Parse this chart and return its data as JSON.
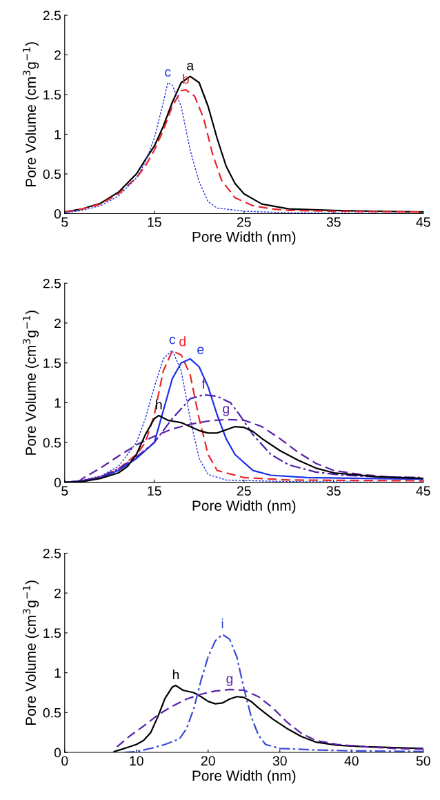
{
  "chart_data": [
    {
      "type": "line",
      "xlabel": "Pore Width (nm)",
      "ylabel": "Pore Volume (cm$^{3}$g$^{−1}$)",
      "xlim": [
        5,
        45
      ],
      "xticks": [
        5,
        15,
        25,
        35,
        45
      ],
      "ylim": [
        0,
        2.5
      ],
      "yticks": [
        0,
        0.5,
        1,
        1.5,
        2,
        2.5
      ],
      "grid": false,
      "legend": false,
      "series": [
        {
          "name": "a",
          "color": "#000000",
          "line_style": "solid",
          "x": [
            5,
            7,
            9,
            11,
            13,
            14,
            15,
            16,
            17,
            18,
            19,
            20,
            21,
            22,
            23,
            24,
            25,
            27,
            30,
            35,
            40,
            45
          ],
          "values": [
            0.02,
            0.06,
            0.13,
            0.27,
            0.5,
            0.68,
            0.85,
            1.1,
            1.4,
            1.65,
            1.73,
            1.65,
            1.35,
            0.95,
            0.6,
            0.38,
            0.25,
            0.12,
            0.06,
            0.04,
            0.03,
            0.02
          ]
        },
        {
          "name": "b",
          "color": "#e8262b",
          "line_style": "dashed",
          "x": [
            5,
            7,
            9,
            11,
            13,
            14,
            15,
            16,
            17,
            18,
            18.5,
            19.5,
            20.5,
            21.5,
            22.5,
            24,
            26,
            28,
            30,
            35,
            45
          ],
          "values": [
            0.02,
            0.06,
            0.12,
            0.25,
            0.45,
            0.6,
            0.8,
            1.05,
            1.35,
            1.55,
            1.56,
            1.48,
            1.2,
            0.75,
            0.42,
            0.2,
            0.1,
            0.06,
            0.04,
            0.03,
            0.02
          ]
        },
        {
          "name": "c",
          "color": "#2030e0",
          "line_style": "dotted",
          "x": [
            5,
            7,
            9,
            11,
            13,
            14,
            15,
            16,
            16.5,
            17,
            18,
            19,
            20,
            21,
            22,
            25,
            30,
            45
          ],
          "values": [
            0.01,
            0.04,
            0.1,
            0.22,
            0.45,
            0.65,
            0.95,
            1.4,
            1.65,
            1.62,
            1.35,
            0.8,
            0.4,
            0.15,
            0.07,
            0.03,
            0.01,
            0.0
          ]
        }
      ]
    },
    {
      "type": "line",
      "xlabel": "Pore Width (nm)",
      "ylabel": "Pore Volume (cm$^{3}$g$^{−1}$)",
      "xlim": [
        5,
        45
      ],
      "xticks": [
        5,
        15,
        25,
        35,
        45
      ],
      "ylim": [
        0,
        2.5
      ],
      "yticks": [
        0,
        0.5,
        1,
        1.5,
        2,
        2.5
      ],
      "grid": false,
      "legend": false,
      "series": [
        {
          "name": "c",
          "color": "#2030e0",
          "line_style": "dotted",
          "x": [
            5,
            7,
            9,
            11,
            13,
            14,
            15,
            16,
            17,
            18,
            19,
            20,
            21,
            23,
            30,
            45
          ],
          "values": [
            0.0,
            0.03,
            0.08,
            0.2,
            0.5,
            0.8,
            1.2,
            1.55,
            1.66,
            1.4,
            0.8,
            0.3,
            0.1,
            0.03,
            0.01,
            0.0
          ]
        },
        {
          "name": "d",
          "color": "#e8262b",
          "line_style": "dashed",
          "x": [
            5,
            7,
            9,
            11,
            13,
            14,
            15,
            16,
            17,
            18,
            19,
            20,
            21,
            22,
            25,
            30,
            45
          ],
          "values": [
            0.0,
            0.02,
            0.07,
            0.17,
            0.35,
            0.5,
            0.85,
            1.4,
            1.65,
            1.6,
            1.35,
            0.8,
            0.35,
            0.15,
            0.06,
            0.03,
            0.02
          ]
        },
        {
          "name": "e",
          "color": "#1a2fe8",
          "line_style": "solid",
          "x": [
            5,
            7,
            9,
            11,
            13,
            15,
            16,
            17,
            18,
            19,
            20,
            21,
            22,
            23,
            24,
            26,
            28,
            32,
            45
          ],
          "values": [
            0.0,
            0.02,
            0.06,
            0.15,
            0.3,
            0.5,
            0.9,
            1.3,
            1.5,
            1.55,
            1.45,
            1.2,
            0.85,
            0.55,
            0.35,
            0.15,
            0.09,
            0.06,
            0.04
          ]
        },
        {
          "name": "f",
          "color": "#4b1fb0",
          "line_style": "dashdot",
          "x": [
            5,
            7,
            9,
            11,
            13,
            15,
            17,
            19,
            20.5,
            22,
            23.5,
            24.5,
            26,
            28,
            30,
            33,
            36,
            40,
            45
          ],
          "values": [
            0.0,
            0.02,
            0.07,
            0.17,
            0.32,
            0.5,
            0.8,
            1.05,
            1.1,
            1.08,
            1.0,
            0.85,
            0.6,
            0.35,
            0.22,
            0.13,
            0.09,
            0.07,
            0.06
          ]
        },
        {
          "name": "g",
          "color": "#5a1fa8",
          "line_style": "dashed",
          "x": [
            6.5,
            7,
            9,
            11,
            13,
            15,
            17,
            19,
            21,
            23,
            25,
            27,
            29,
            31,
            33,
            35,
            38,
            41,
            45
          ],
          "values": [
            0.0,
            0.05,
            0.18,
            0.33,
            0.47,
            0.58,
            0.67,
            0.73,
            0.77,
            0.79,
            0.78,
            0.7,
            0.55,
            0.38,
            0.24,
            0.15,
            0.1,
            0.07,
            0.05
          ]
        },
        {
          "name": "h",
          "color": "#000000",
          "line_style": "solid",
          "x": [
            5,
            7,
            9,
            11,
            12,
            13,
            14,
            15,
            15.5,
            16.5,
            18,
            19,
            20,
            21,
            22,
            23,
            24,
            25,
            26,
            27,
            29,
            31,
            33,
            35,
            40,
            45
          ],
          "values": [
            0.0,
            0.01,
            0.05,
            0.12,
            0.2,
            0.35,
            0.6,
            0.8,
            0.84,
            0.78,
            0.75,
            0.7,
            0.65,
            0.62,
            0.62,
            0.66,
            0.7,
            0.69,
            0.64,
            0.55,
            0.4,
            0.28,
            0.18,
            0.12,
            0.07,
            0.05
          ]
        }
      ]
    },
    {
      "type": "line",
      "xlabel": "Pore Width (nm)",
      "ylabel": "Pore Volume (cm$^{3}$g$^{−1}$)",
      "xlim": [
        0,
        50
      ],
      "xticks": [
        0,
        10,
        20,
        30,
        40,
        50
      ],
      "ylim": [
        0,
        2.5
      ],
      "yticks": [
        0,
        0.5,
        1,
        1.5,
        2,
        2.5
      ],
      "grid": false,
      "legend": false,
      "series": [
        {
          "name": "h",
          "color": "#000000",
          "line_style": "solid",
          "x": [
            6.9,
            8,
            9,
            10,
            11,
            12,
            13,
            14,
            15,
            15.5,
            16.5,
            18,
            19,
            20,
            21,
            22,
            23,
            24,
            25,
            26,
            27,
            29,
            31,
            33,
            35,
            38,
            42,
            50
          ],
          "values": [
            0.01,
            0.04,
            0.07,
            0.1,
            0.15,
            0.25,
            0.45,
            0.68,
            0.82,
            0.84,
            0.78,
            0.75,
            0.7,
            0.64,
            0.61,
            0.62,
            0.67,
            0.7,
            0.69,
            0.64,
            0.56,
            0.42,
            0.3,
            0.2,
            0.13,
            0.09,
            0.07,
            0.05
          ]
        },
        {
          "name": "g",
          "color": "#5a1fa8",
          "line_style": "dashed",
          "x": [
            7.3,
            9,
            11,
            13,
            15,
            17,
            19,
            21,
            23,
            25,
            27,
            29,
            31,
            33,
            35,
            38,
            42,
            46,
            50
          ],
          "values": [
            0.07,
            0.2,
            0.33,
            0.47,
            0.58,
            0.67,
            0.73,
            0.77,
            0.79,
            0.78,
            0.7,
            0.56,
            0.38,
            0.24,
            0.15,
            0.1,
            0.07,
            0.05,
            0.04
          ]
        },
        {
          "name": "i",
          "color": "#3a4ad8",
          "line_style": "dashdot",
          "x": [
            8.3,
            10,
            12,
            14,
            16,
            17,
            18,
            19,
            20,
            21,
            22,
            23,
            24,
            25,
            26,
            27,
            28,
            30,
            35,
            40,
            50
          ],
          "values": [
            0.0,
            0.01,
            0.05,
            0.1,
            0.17,
            0.3,
            0.55,
            0.9,
            1.2,
            1.4,
            1.48,
            1.42,
            1.2,
            0.8,
            0.45,
            0.22,
            0.1,
            0.05,
            0.03,
            0.02,
            0.01
          ]
        }
      ]
    }
  ]
}
